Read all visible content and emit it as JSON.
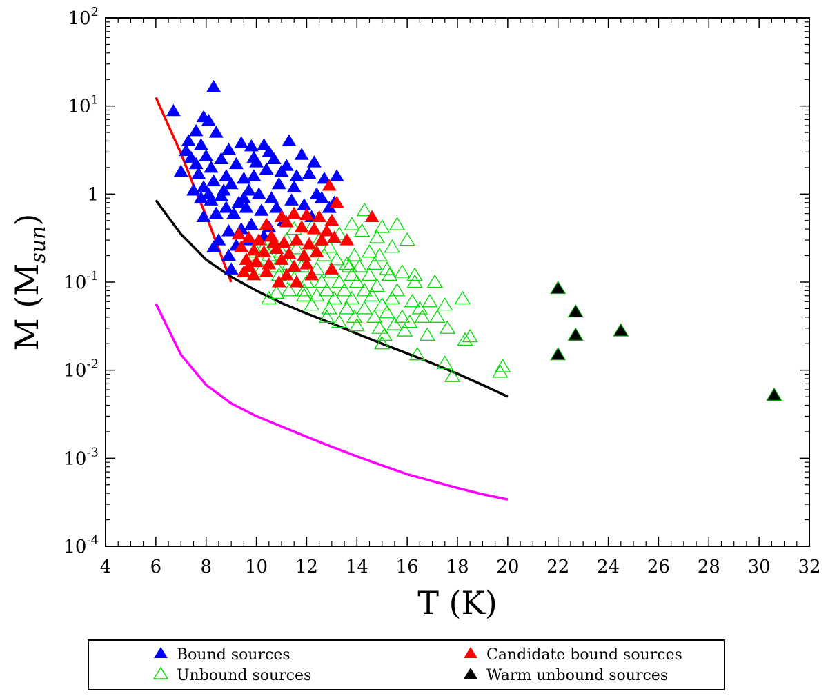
{
  "chart_data": {
    "type": "scatter",
    "title": "",
    "xlabel": "T (K)",
    "ylabel_main": "M (M",
    "ylabel_sub": "sun",
    "ylabel_close": ")",
    "xlim": [
      4,
      32
    ],
    "ylim": [
      0.0001,
      100
    ],
    "yscale": "log",
    "x_ticks": [
      4,
      6,
      8,
      10,
      12,
      14,
      16,
      18,
      20,
      22,
      24,
      26,
      28,
      30,
      32
    ],
    "x_tick_labels": [
      "4",
      "6",
      "8",
      "10",
      "12",
      "14",
      "16",
      "18",
      "20",
      "22",
      "24",
      "26",
      "28",
      "30",
      "32"
    ],
    "y_ticks": [
      {
        "value": 100,
        "base": "10",
        "exp": "2"
      },
      {
        "value": 10,
        "base": "10",
        "exp": "1"
      },
      {
        "value": 1,
        "base": "1",
        "exp": ""
      },
      {
        "value": 0.1,
        "base": "10",
        "exp": "-1"
      },
      {
        "value": 0.01,
        "base": "10",
        "exp": "-2"
      },
      {
        "value": 0.001,
        "base": "10",
        "exp": "-3"
      },
      {
        "value": 0.0001,
        "base": "10",
        "exp": "-4"
      }
    ],
    "legend": {
      "position": "bottom",
      "entries": [
        {
          "label": "Bound sources",
          "series": "bound"
        },
        {
          "label": "Unbound sources",
          "series": "unbound"
        },
        {
          "label": "Candidate bound sources",
          "series": "candidate"
        },
        {
          "label": "Warm unbound sources",
          "series": "warm"
        }
      ]
    },
    "series": [
      {
        "name": "Bound sources",
        "id": "bound",
        "marker": "triangle-filled",
        "color": "#0000ff",
        "points": [
          [
            6.7,
            8.8
          ],
          [
            8.3,
            16.5
          ],
          [
            7.9,
            7.5
          ],
          [
            8.1,
            6.8
          ],
          [
            7.6,
            5.2
          ],
          [
            8.4,
            5.0
          ],
          [
            7.3,
            4.0
          ],
          [
            7.8,
            3.6
          ],
          [
            7.2,
            3.1
          ],
          [
            7.4,
            2.6
          ],
          [
            7.6,
            2.2
          ],
          [
            8.0,
            2.7
          ],
          [
            7.0,
            1.8
          ],
          [
            7.7,
            1.7
          ],
          [
            8.2,
            2.0
          ],
          [
            8.6,
            2.5
          ],
          [
            8.9,
            3.2
          ],
          [
            9.4,
            3.8
          ],
          [
            9.8,
            3.5
          ],
          [
            10.3,
            3.6
          ],
          [
            10.5,
            3.0
          ],
          [
            11.3,
            4.0
          ],
          [
            10.0,
            2.3
          ],
          [
            9.2,
            2.2
          ],
          [
            8.8,
            1.6
          ],
          [
            8.3,
            1.4
          ],
          [
            7.9,
            1.2
          ],
          [
            7.5,
            1.1
          ],
          [
            8.1,
            1.0
          ],
          [
            8.6,
            0.95
          ],
          [
            9.0,
            1.3
          ],
          [
            9.5,
            1.5
          ],
          [
            9.9,
            1.6
          ],
          [
            10.4,
            1.9
          ],
          [
            11.0,
            1.8
          ],
          [
            11.6,
            1.6
          ],
          [
            12.1,
            1.7
          ],
          [
            12.7,
            1.5
          ],
          [
            13.2,
            1.6
          ],
          [
            12.3,
            2.3
          ],
          [
            11.8,
            2.8
          ],
          [
            11.2,
            2.1
          ],
          [
            9.7,
            1.1
          ],
          [
            10.1,
            1.0
          ],
          [
            10.6,
            0.9
          ],
          [
            11.4,
            0.85
          ],
          [
            9.3,
            0.8
          ],
          [
            8.8,
            0.7
          ],
          [
            8.4,
            0.6
          ],
          [
            7.9,
            0.55
          ],
          [
            9.1,
            0.6
          ],
          [
            9.6,
            0.7
          ],
          [
            10.2,
            0.65
          ],
          [
            10.8,
            0.7
          ],
          [
            11.9,
            0.75
          ],
          [
            12.6,
            0.9
          ],
          [
            13.1,
            0.8
          ],
          [
            9.8,
            0.45
          ],
          [
            9.4,
            0.4
          ],
          [
            8.9,
            0.38
          ],
          [
            10.5,
            0.42
          ],
          [
            11.1,
            0.5
          ],
          [
            12.2,
            0.55
          ],
          [
            8.5,
            0.3
          ],
          [
            9.2,
            0.26
          ],
          [
            8.3,
            0.25
          ],
          [
            8.9,
            0.2
          ],
          [
            9.0,
            0.14
          ],
          [
            9.7,
            0.3
          ],
          [
            10.3,
            0.33
          ],
          [
            7.8,
            0.9
          ],
          [
            8.7,
            1.1
          ],
          [
            9.9,
            2.6
          ],
          [
            10.7,
            2.5
          ],
          [
            11.5,
            1.2
          ],
          [
            12.4,
            1.0
          ],
          [
            12.9,
            0.7
          ],
          [
            9.5,
            0.9
          ],
          [
            10.9,
            1.3
          ],
          [
            8.2,
            0.85
          ]
        ]
      },
      {
        "name": "Candidate bound sources",
        "id": "candidate",
        "marker": "triangle-filled",
        "color": "#ff0000",
        "points": [
          [
            12.9,
            1.25
          ],
          [
            13.2,
            0.8
          ],
          [
            14.6,
            0.55
          ],
          [
            11.0,
            0.55
          ],
          [
            11.5,
            0.6
          ],
          [
            12.0,
            0.58
          ],
          [
            12.5,
            0.55
          ],
          [
            13.0,
            0.5
          ],
          [
            10.4,
            0.45
          ],
          [
            11.2,
            0.48
          ],
          [
            11.8,
            0.42
          ],
          [
            12.3,
            0.4
          ],
          [
            12.8,
            0.38
          ],
          [
            9.3,
            0.35
          ],
          [
            9.7,
            0.32
          ],
          [
            10.1,
            0.3
          ],
          [
            10.6,
            0.33
          ],
          [
            11.1,
            0.28
          ],
          [
            11.6,
            0.3
          ],
          [
            12.1,
            0.27
          ],
          [
            12.6,
            0.3
          ],
          [
            13.1,
            0.32
          ],
          [
            13.6,
            0.3
          ],
          [
            9.4,
            0.25
          ],
          [
            9.9,
            0.23
          ],
          [
            10.3,
            0.22
          ],
          [
            10.8,
            0.24
          ],
          [
            11.3,
            0.21
          ],
          [
            11.9,
            0.2
          ],
          [
            12.4,
            0.22
          ],
          [
            9.6,
            0.18
          ],
          [
            10.0,
            0.17
          ],
          [
            10.5,
            0.16
          ],
          [
            11.0,
            0.18
          ],
          [
            11.5,
            0.15
          ],
          [
            12.0,
            0.16
          ],
          [
            9.5,
            0.13
          ],
          [
            9.9,
            0.12
          ],
          [
            10.4,
            0.13
          ],
          [
            11.2,
            0.12
          ],
          [
            10.9,
            0.1
          ],
          [
            11.6,
            0.1
          ],
          [
            13.0,
            0.14
          ],
          [
            12.2,
            0.12
          ],
          [
            9.7,
            0.15
          ],
          [
            10.7,
            0.28
          ]
        ]
      },
      {
        "name": "Unbound sources",
        "id": "unbound",
        "marker": "triangle-open",
        "color": "#00dd00",
        "points": [
          [
            14.3,
            0.65
          ],
          [
            15.6,
            0.45
          ],
          [
            13.8,
            0.45
          ],
          [
            15.0,
            0.42
          ],
          [
            14.2,
            0.38
          ],
          [
            12.2,
            0.42
          ],
          [
            11.5,
            0.4
          ],
          [
            13.3,
            0.35
          ],
          [
            14.8,
            0.32
          ],
          [
            16.0,
            0.3
          ],
          [
            15.4,
            0.25
          ],
          [
            14.5,
            0.22
          ],
          [
            13.9,
            0.2
          ],
          [
            12.9,
            0.25
          ],
          [
            12.5,
            0.3
          ],
          [
            11.2,
            0.3
          ],
          [
            10.7,
            0.28
          ],
          [
            10.3,
            0.25
          ],
          [
            10.0,
            0.22
          ],
          [
            9.8,
            0.2
          ],
          [
            10.5,
            0.2
          ],
          [
            11.0,
            0.22
          ],
          [
            11.6,
            0.24
          ],
          [
            12.1,
            0.22
          ],
          [
            12.7,
            0.2
          ],
          [
            13.2,
            0.18
          ],
          [
            13.6,
            0.16
          ],
          [
            14.1,
            0.15
          ],
          [
            14.7,
            0.16
          ],
          [
            15.2,
            0.14
          ],
          [
            15.8,
            0.13
          ],
          [
            16.3,
            0.12
          ],
          [
            15.3,
            0.12
          ],
          [
            14.5,
            0.12
          ],
          [
            13.8,
            0.12
          ],
          [
            13.0,
            0.13
          ],
          [
            12.4,
            0.14
          ],
          [
            11.8,
            0.15
          ],
          [
            11.3,
            0.16
          ],
          [
            10.8,
            0.15
          ],
          [
            10.2,
            0.14
          ],
          [
            10.9,
            0.12
          ],
          [
            11.5,
            0.11
          ],
          [
            12.0,
            0.1
          ],
          [
            12.6,
            0.1
          ],
          [
            13.3,
            0.1
          ],
          [
            14.0,
            0.1
          ],
          [
            14.8,
            0.09
          ],
          [
            16.3,
            0.1
          ],
          [
            17.1,
            0.1
          ],
          [
            15.6,
            0.08
          ],
          [
            14.3,
            0.08
          ],
          [
            13.5,
            0.08
          ],
          [
            12.8,
            0.08
          ],
          [
            11.9,
            0.08
          ],
          [
            11.3,
            0.08
          ],
          [
            10.8,
            0.075
          ],
          [
            10.5,
            0.065
          ],
          [
            11.9,
            0.07
          ],
          [
            12.4,
            0.07
          ],
          [
            13.1,
            0.065
          ],
          [
            13.8,
            0.065
          ],
          [
            14.6,
            0.07
          ],
          [
            15.4,
            0.065
          ],
          [
            16.2,
            0.06
          ],
          [
            16.9,
            0.06
          ],
          [
            17.5,
            0.055
          ],
          [
            18.2,
            0.065
          ],
          [
            15.0,
            0.055
          ],
          [
            14.3,
            0.05
          ],
          [
            13.6,
            0.05
          ],
          [
            12.9,
            0.05
          ],
          [
            12.2,
            0.055
          ],
          [
            13.9,
            0.04
          ],
          [
            14.7,
            0.04
          ],
          [
            15.2,
            0.045
          ],
          [
            15.8,
            0.04
          ],
          [
            16.6,
            0.04
          ],
          [
            17.2,
            0.04
          ],
          [
            16.1,
            0.035
          ],
          [
            15.5,
            0.033
          ],
          [
            14.9,
            0.03
          ],
          [
            14.0,
            0.032
          ],
          [
            13.3,
            0.035
          ],
          [
            12.8,
            0.04
          ],
          [
            15.1,
            0.025
          ],
          [
            15.9,
            0.028
          ],
          [
            16.8,
            0.025
          ],
          [
            17.6,
            0.03
          ],
          [
            18.3,
            0.022
          ],
          [
            18.5,
            0.024
          ],
          [
            15.0,
            0.02
          ],
          [
            16.4,
            0.015
          ],
          [
            17.5,
            0.012
          ],
          [
            17.8,
            0.0085
          ],
          [
            19.7,
            0.0095
          ],
          [
            19.8,
            0.011
          ],
          [
            16.5,
            0.05
          ],
          [
            13.7,
            0.15
          ],
          [
            14.9,
            0.2
          ]
        ]
      },
      {
        "name": "Warm unbound sources",
        "id": "warm",
        "marker": "triangle-filled-green-edge",
        "color": "#000000",
        "points": [
          [
            22.0,
            0.085
          ],
          [
            22.7,
            0.046
          ],
          [
            22.7,
            0.025
          ],
          [
            22.0,
            0.015
          ],
          [
            24.5,
            0.028
          ],
          [
            30.6,
            0.0052
          ]
        ]
      }
    ],
    "curves": [
      {
        "name": "red-limit",
        "color": "#ff0000",
        "x": [
          6.0,
          6.5,
          7.0,
          7.5,
          8.0,
          8.5,
          9.0
        ],
        "y": [
          12.5,
          6.0,
          2.9,
          1.25,
          0.57,
          0.24,
          0.1
        ]
      },
      {
        "name": "black-limit",
        "color": "#000000",
        "x": [
          6.0,
          7.0,
          8.0,
          9.0,
          10.0,
          11.0,
          12.0,
          13.0,
          14.0,
          15.0,
          16.0,
          17.0,
          18.0,
          19.0,
          20.0
        ],
        "y": [
          0.85,
          0.35,
          0.18,
          0.115,
          0.08,
          0.058,
          0.044,
          0.034,
          0.026,
          0.02,
          0.0155,
          0.012,
          0.0091,
          0.0068,
          0.005
        ]
      },
      {
        "name": "magenta-limit",
        "color": "#ff00ff",
        "x": [
          6.0,
          7.0,
          8.0,
          9.0,
          10.0,
          11.0,
          12.0,
          13.0,
          14.0,
          15.0,
          16.0,
          17.0,
          18.0,
          19.0,
          20.0
        ],
        "y": [
          0.057,
          0.015,
          0.0068,
          0.0042,
          0.003,
          0.0023,
          0.00175,
          0.00135,
          0.00105,
          0.00083,
          0.00066,
          0.00055,
          0.00046,
          0.00039,
          0.00034
        ]
      }
    ]
  }
}
